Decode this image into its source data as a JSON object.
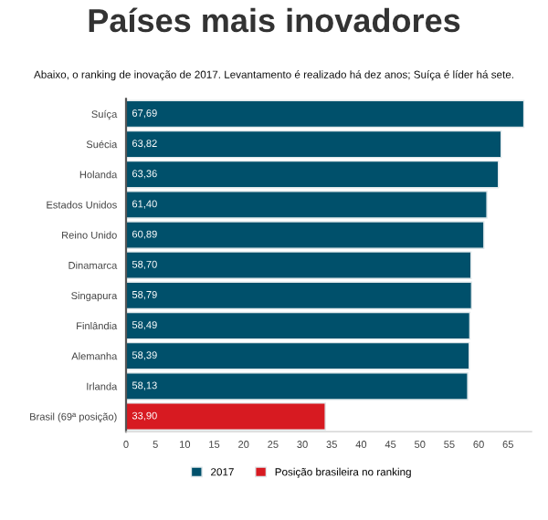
{
  "chart_data": {
    "type": "bar",
    "orientation": "horizontal",
    "title": "Países mais inovadores",
    "subtitle": "Abaixo, o ranking de inovação de 2017. Levantamento é realizado há dez anos; Suíça é líder há sete.",
    "categories": [
      "Suíça",
      "Suécia",
      "Holanda",
      "Estados Unidos",
      "Reino Unido",
      "Dinamarca",
      "Singapura",
      "Finlândia",
      "Alemanha",
      "Irlanda",
      "Brasil (69ª posição)"
    ],
    "series": [
      {
        "name": "2017",
        "color": "#00506b",
        "values": [
          67.69,
          63.82,
          63.36,
          61.4,
          60.89,
          58.7,
          58.79,
          58.49,
          58.39,
          58.13,
          null
        ],
        "value_labels": [
          "67,69",
          "63,82",
          "63,36",
          "61,40",
          "60,89",
          "58,70",
          "58,79",
          "58,49",
          "58,39",
          "58,13",
          null
        ]
      },
      {
        "name": "Posição brasileira no ranking",
        "color": "#d71a21",
        "values": [
          null,
          null,
          null,
          null,
          null,
          null,
          null,
          null,
          null,
          null,
          33.9
        ],
        "value_labels": [
          null,
          null,
          null,
          null,
          null,
          null,
          null,
          null,
          null,
          null,
          "33,90"
        ]
      }
    ],
    "xlim": [
      0,
      69
    ],
    "xticks": [
      0,
      5,
      10,
      15,
      20,
      25,
      30,
      35,
      40,
      45,
      50,
      55,
      60,
      65
    ],
    "grid": false,
    "legend": "bottom"
  }
}
